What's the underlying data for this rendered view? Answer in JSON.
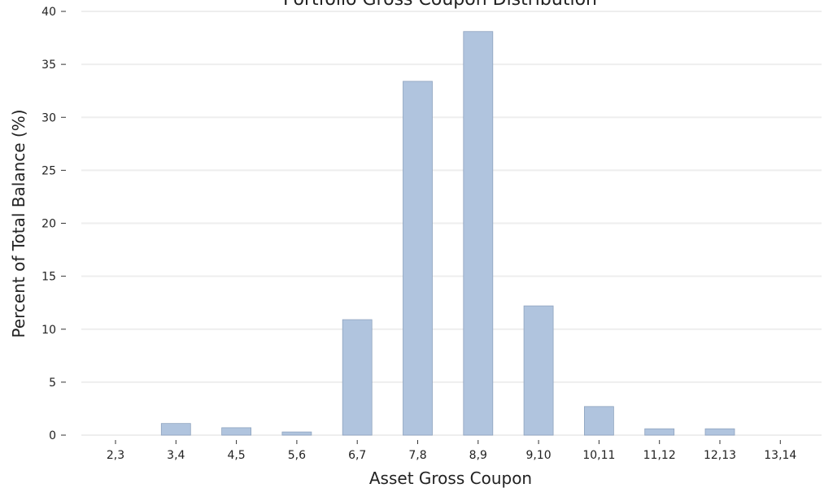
{
  "chart_data": {
    "type": "bar",
    "title": "Portfolio Gross Coupon Distribution",
    "xlabel": "Asset Gross Coupon",
    "ylabel": "Percent of Total Balance (%)",
    "categories": [
      "2,3",
      "3,4",
      "4,5",
      "5,6",
      "6,7",
      "7,8",
      "8,9",
      "9,10",
      "10,11",
      "11,12",
      "12,13",
      "13,14"
    ],
    "values": [
      0,
      1.1,
      0.7,
      0.3,
      10.9,
      33.4,
      38.1,
      12.2,
      2.7,
      0.6,
      0.6,
      0
    ],
    "ylim": [
      0,
      40
    ],
    "yticks": [
      0,
      5,
      10,
      15,
      20,
      25,
      30,
      35,
      40
    ],
    "grid": "horizontal",
    "bar_color": "#b0c4de",
    "bar_edge_color": "#8ea3bf",
    "grid_color": "#eeeeee"
  }
}
